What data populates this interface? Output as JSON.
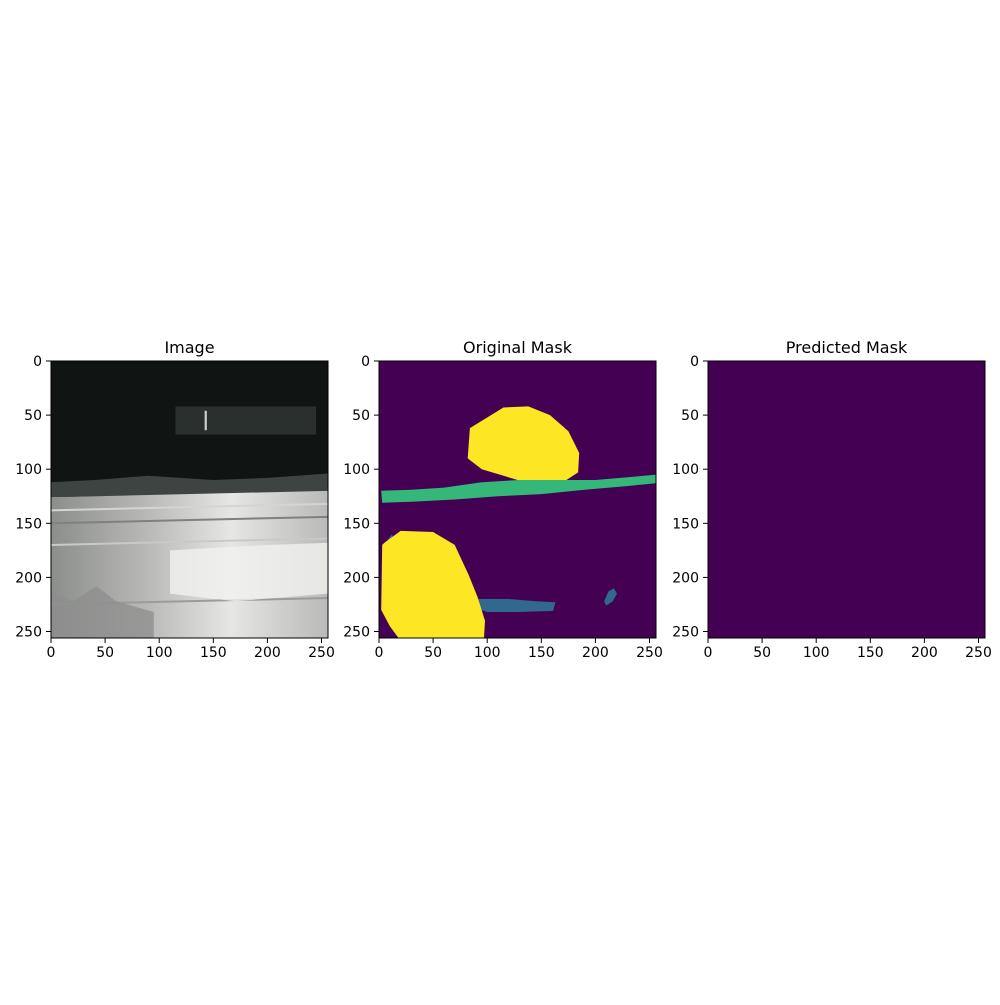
{
  "chart_data": [
    {
      "type": "image",
      "title": "Image",
      "xlim": [
        0,
        256
      ],
      "ylim": [
        256,
        0
      ],
      "x_ticks": [
        "0",
        "50",
        "100",
        "150",
        "200",
        "250"
      ],
      "y_ticks": [
        "0",
        "50",
        "100",
        "150",
        "200",
        "250"
      ],
      "colors": {
        "dark": "#101412",
        "trim": "#2a302e",
        "silver": "#b9bab8",
        "highlight": "#e6e6e4",
        "shadow": "#8c8e8c"
      }
    },
    {
      "type": "heatmap",
      "title": "Original Mask",
      "xlim": [
        0,
        256
      ],
      "ylim": [
        256,
        0
      ],
      "x_ticks": [
        "0",
        "50",
        "100",
        "150",
        "200",
        "250"
      ],
      "y_ticks": [
        "0",
        "50",
        "100",
        "150",
        "200",
        "250"
      ],
      "background_color": "#440154",
      "regions": [
        {
          "color": "#fde725",
          "points": [
            [
              84,
              62
            ],
            [
              115,
              43
            ],
            [
              138,
              42
            ],
            [
              158,
              50
            ],
            [
              175,
              65
            ],
            [
              185,
              85
            ],
            [
              184,
              103
            ],
            [
              158,
              120
            ],
            [
              128,
              110
            ],
            [
              95,
              100
            ],
            [
              82,
              90
            ]
          ]
        },
        {
          "color": "#35b779",
          "points": [
            [
              2,
              120
            ],
            [
              30,
              119
            ],
            [
              60,
              117
            ],
            [
              95,
              112
            ],
            [
              130,
              110
            ],
            [
              160,
              110
            ],
            [
              200,
              110
            ],
            [
              235,
              107
            ],
            [
              256,
              105
            ],
            [
              256,
              113
            ],
            [
              225,
              116
            ],
            [
              190,
              119
            ],
            [
              150,
              123
            ],
            [
              110,
              125
            ],
            [
              70,
              128
            ],
            [
              30,
              130
            ],
            [
              3,
              131
            ]
          ]
        },
        {
          "color": "#31688e",
          "points": [
            [
              90,
              220
            ],
            [
              120,
              220
            ],
            [
              145,
              222
            ],
            [
              163,
              223
            ],
            [
              161,
              231
            ],
            [
              130,
              232
            ],
            [
              100,
              232
            ],
            [
              88,
              228
            ]
          ]
        },
        {
          "color": "#31688e",
          "points": [
            [
              212,
              213
            ],
            [
              217,
              210
            ],
            [
              220,
              215
            ],
            [
              216,
              222
            ],
            [
              210,
              226
            ],
            [
              208,
              222
            ]
          ]
        },
        {
          "color": "#31688e",
          "points": [
            [
              6,
              168
            ],
            [
              12,
              160
            ],
            [
              14,
              168
            ],
            [
              10,
              174
            ],
            [
              5,
              174
            ]
          ]
        },
        {
          "color": "#fde725",
          "points": [
            [
              3,
              170
            ],
            [
              5,
              168
            ],
            [
              20,
              157
            ],
            [
              50,
              158
            ],
            [
              70,
              170
            ],
            [
              83,
              198
            ],
            [
              91,
              218
            ],
            [
              98,
              240
            ],
            [
              97,
              256
            ],
            [
              30,
              256
            ],
            [
              18,
              256
            ],
            [
              10,
              245
            ],
            [
              2,
              230
            ]
          ]
        }
      ]
    },
    {
      "type": "heatmap",
      "title": "Predicted Mask",
      "xlim": [
        0,
        256
      ],
      "ylim": [
        256,
        0
      ],
      "x_ticks": [
        "0",
        "50",
        "100",
        "150",
        "200",
        "250"
      ],
      "y_ticks": [
        "0",
        "50",
        "100",
        "150",
        "200",
        "250"
      ],
      "background_color": "#440154",
      "regions": []
    }
  ]
}
